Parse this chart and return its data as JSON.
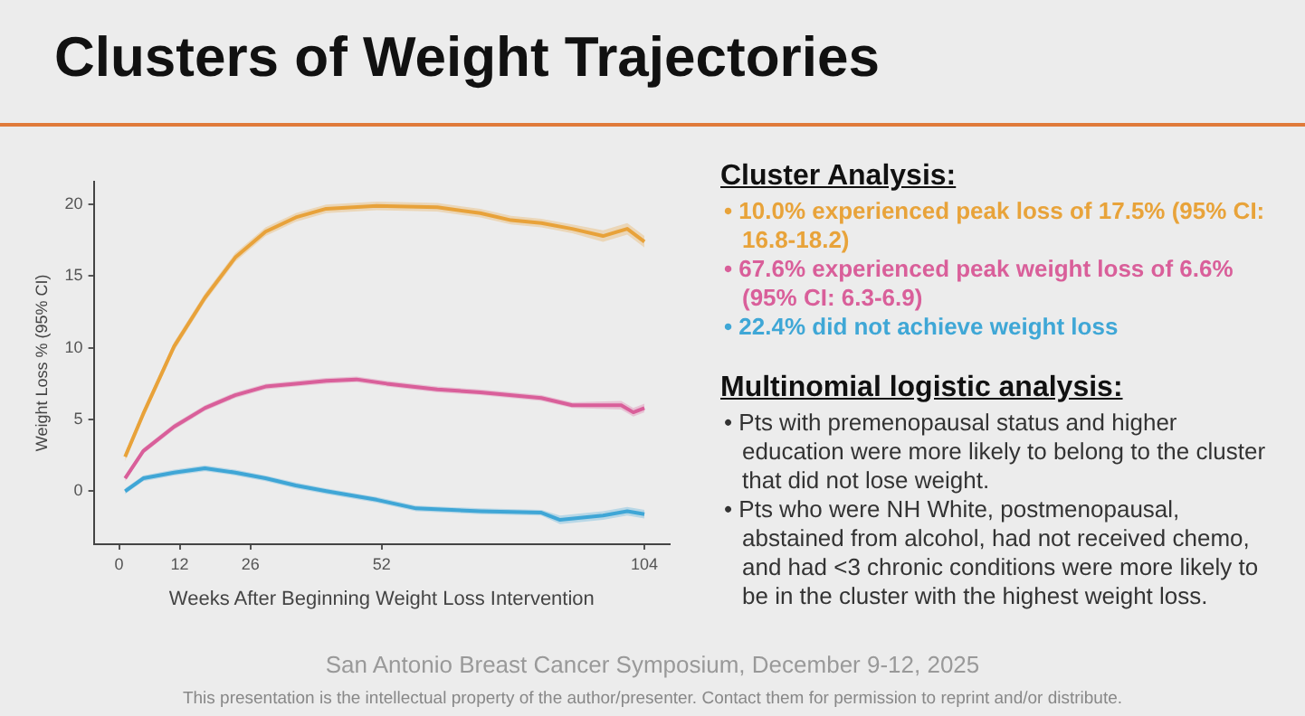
{
  "chart_data": {
    "type": "line",
    "title": "Clusters of Weight Trajectories",
    "xlabel": "Weeks After Beginning Weight Loss Intervention",
    "ylabel": "Weight Loss % (95% CI)",
    "xlim": [
      -5,
      109
    ],
    "xticks": [
      0,
      12,
      26,
      52,
      104
    ],
    "ylim": [
      -3.7,
      21.6
    ],
    "yticks": [
      0,
      5,
      10,
      15,
      20
    ],
    "grid": false,
    "legend": false,
    "marker": "none",
    "line_style": "solid",
    "series": [
      {
        "color": "#e8a33a",
        "x": [
          1.2,
          4.8,
          10.9,
          17,
          23,
          29,
          35,
          41,
          51,
          63,
          71.5,
          77.6,
          83.6,
          89.7,
          95.8,
          100.6,
          104
        ],
        "values": [
          2.4,
          5.4,
          10.1,
          13.5,
          16.3,
          18.1,
          19.1,
          19.7,
          19.9,
          19.8,
          19.4,
          18.9,
          18.7,
          18.3,
          17.8,
          18.3,
          17.4
        ],
        "lower": [
          2.1,
          5.1,
          9.8,
          13.2,
          16,
          17.8,
          18.8,
          19.4,
          19.6,
          19.5,
          19.1,
          18.6,
          18.4,
          18,
          17.4,
          17.9,
          17
        ],
        "upper": [
          2.7,
          5.7,
          10.4,
          13.8,
          16.6,
          18.4,
          19.4,
          20,
          20.2,
          20.1,
          19.7,
          19.2,
          19,
          18.6,
          18.2,
          18.7,
          17.8
        ]
      },
      {
        "color": "#d95f9a",
        "x": [
          1.2,
          4.8,
          10.9,
          17,
          23,
          29,
          35,
          41,
          47,
          53,
          63,
          71.5,
          83.6,
          89.7,
          99.4,
          101.8,
          104
        ],
        "values": [
          0.9,
          2.8,
          4.5,
          5.8,
          6.7,
          7.3,
          7.5,
          7.7,
          7.8,
          7.5,
          7.1,
          6.9,
          6.5,
          6,
          6,
          5.5,
          5.8
        ],
        "lower": [
          0.7,
          2.6,
          4.3,
          5.6,
          6.5,
          7.1,
          7.3,
          7.5,
          7.6,
          7.3,
          6.9,
          6.7,
          6.3,
          5.8,
          5.7,
          5.2,
          5.5
        ],
        "upper": [
          1.1,
          3,
          4.7,
          6,
          6.9,
          7.5,
          7.7,
          7.9,
          8,
          7.7,
          7.3,
          7.1,
          6.7,
          6.2,
          6.3,
          5.8,
          6.1
        ]
      },
      {
        "color": "#3fa7d6",
        "x": [
          1.2,
          4.8,
          10.9,
          17,
          23,
          29,
          35,
          41,
          51,
          58.8,
          71.5,
          83.6,
          87.3,
          95.8,
          100.6,
          104
        ],
        "values": [
          0,
          0.9,
          1.3,
          1.6,
          1.3,
          0.9,
          0.4,
          0,
          -0.6,
          -1.2,
          -1.4,
          -1.5,
          -2,
          -1.7,
          -1.4,
          -1.6
        ],
        "lower": [
          -0.2,
          0.7,
          1.1,
          1.4,
          1.1,
          0.7,
          0.2,
          -0.2,
          -0.8,
          -1.4,
          -1.6,
          -1.7,
          -2.3,
          -2,
          -1.7,
          -1.9
        ],
        "upper": [
          0.2,
          1.1,
          1.5,
          1.8,
          1.5,
          1.1,
          0.6,
          0.2,
          -0.4,
          -1,
          -1.2,
          -1.3,
          -1.7,
          -1.4,
          -1.1,
          -1.3
        ]
      }
    ],
    "annotations": [
      "Cluster Analysis:",
      "• 10.0% experienced peak loss of 17.5% (95% CI: 16.8-18.2)",
      "• 67.6% experienced peak weight loss of 6.6% (95% CI: 6.3-6.9)",
      "• 22.4% did not achieve weight loss",
      "Multinomial logistic analysis:",
      "• Pts with premenopausal status and higher education were more likely to belong to the cluster that did not lose weight.",
      "• Pts who were NH White, postmenopausal, abstained from alcohol, had not received chemo, and had <3 chronic conditions were more likely to be in the cluster with the highest weight loss.",
      "San Antonio Breast Cancer Symposium, December 9-12, 2025",
      "This presentation is the intellectual property of the author/presenter. Contact them for permission to reprint and/or distribute."
    ]
  }
}
